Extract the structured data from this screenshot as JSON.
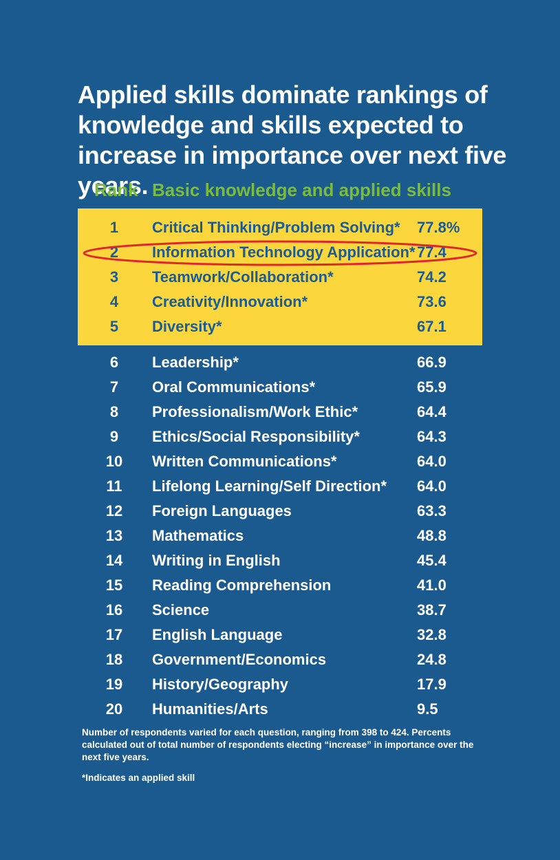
{
  "title": "Applied skills dominate rankings of knowledge and skills expected to increase in importance over next five years.",
  "header": {
    "rank": "Rank",
    "skill": "Basic knowledge and applied skills"
  },
  "highlight_color": "#fbd63c",
  "accent_color": "#7dbb3c",
  "background_color": "#1a5a8e",
  "circle_color": "#e0262b",
  "circled_rank": 2,
  "rows": [
    {
      "rank": "1",
      "skill": "Critical Thinking/Problem Solving*",
      "value": "77.8%"
    },
    {
      "rank": "2",
      "skill": "Information Technology Application*",
      "value": "77.4"
    },
    {
      "rank": "3",
      "skill": "Teamwork/Collaboration*",
      "value": "74.2"
    },
    {
      "rank": "4",
      "skill": "Creativity/Innovation*",
      "value": "73.6"
    },
    {
      "rank": "5",
      "skill": "Diversity*",
      "value": "67.1"
    },
    {
      "rank": "6",
      "skill": "Leadership*",
      "value": "66.9"
    },
    {
      "rank": "7",
      "skill": "Oral Communications*",
      "value": "65.9"
    },
    {
      "rank": "8",
      "skill": "Professionalism/Work Ethic*",
      "value": "64.4"
    },
    {
      "rank": "9",
      "skill": "Ethics/Social Responsibility*",
      "value": "64.3"
    },
    {
      "rank": "10",
      "skill": "Written Communications*",
      "value": "64.0"
    },
    {
      "rank": "11",
      "skill": "Lifelong Learning/Self Direction*",
      "value": "64.0"
    },
    {
      "rank": "12",
      "skill": "Foreign Languages",
      "value": "63.3"
    },
    {
      "rank": "13",
      "skill": "Mathematics",
      "value": "48.8"
    },
    {
      "rank": "14",
      "skill": "Writing in English",
      "value": "45.4"
    },
    {
      "rank": "15",
      "skill": "Reading Comprehension",
      "value": "41.0"
    },
    {
      "rank": "16",
      "skill": "Science",
      "value": "38.7"
    },
    {
      "rank": "17",
      "skill": "English Language",
      "value": "32.8"
    },
    {
      "rank": "18",
      "skill": "Government/Economics",
      "value": "24.8"
    },
    {
      "rank": "19",
      "skill": "History/Geography",
      "value": "17.9"
    },
    {
      "rank": "20",
      "skill": "Humanities/Arts",
      "value": "9.5"
    }
  ],
  "note": "Number of respondents varied for each question, ranging from 398 to 424. Percents calculated out of total number of respondents electing “increase” in importance over the next five years.",
  "footnote": "*Indicates an applied skill"
}
